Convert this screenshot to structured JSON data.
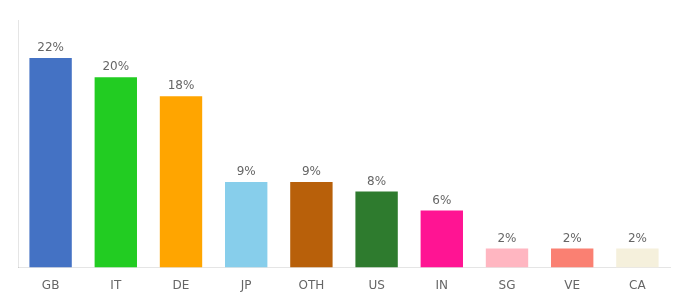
{
  "chart_data": {
    "type": "bar",
    "categories": [
      "GB",
      "IT",
      "DE",
      "JP",
      "OTH",
      "US",
      "IN",
      "SG",
      "VE",
      "CA"
    ],
    "values": [
      22,
      20,
      18,
      9,
      9,
      8,
      6,
      2,
      2,
      2
    ],
    "value_labels": [
      "22%",
      "20%",
      "18%",
      "9%",
      "9%",
      "8%",
      "6%",
      "2%",
      "2%",
      "2%"
    ],
    "colors": [
      "#4472C4",
      "#22CC22",
      "#FFA500",
      "#87CEEB",
      "#B8600A",
      "#2E7B2E",
      "#FF1493",
      "#FFB6C1",
      "#FA8072",
      "#F5F0DC"
    ],
    "ylim": [
      0,
      26
    ],
    "data_labels": true,
    "tick_labels": "x",
    "grid": false
  }
}
